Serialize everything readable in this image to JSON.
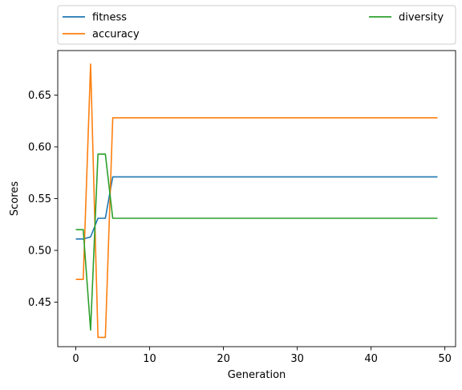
{
  "chart_data": {
    "type": "line",
    "title": "",
    "xlabel": "Generation",
    "ylabel": "Scores",
    "xlim": [
      -2.45,
      51.45
    ],
    "ylim": [
      0.407,
      0.693
    ],
    "xticks": [
      0,
      10,
      20,
      30,
      40,
      50
    ],
    "yticks": [
      0.45,
      0.5,
      0.55,
      0.6,
      0.65
    ],
    "ytick_labels": [
      "0.45",
      "0.50",
      "0.55",
      "0.60",
      "0.65"
    ],
    "grid": false,
    "legend": {
      "placement": "top (above plot, two columns)",
      "columns": 2
    },
    "x": [
      0,
      1,
      2,
      3,
      4,
      5,
      6,
      7,
      8,
      9,
      10,
      11,
      12,
      13,
      14,
      15,
      16,
      17,
      18,
      19,
      20,
      21,
      22,
      23,
      24,
      25,
      26,
      27,
      28,
      29,
      30,
      31,
      32,
      33,
      34,
      35,
      36,
      37,
      38,
      39,
      40,
      41,
      42,
      43,
      44,
      45,
      46,
      47,
      48,
      49
    ],
    "series": [
      {
        "name": "fitness",
        "color": "#1f77b4",
        "values": [
          0.511,
          0.511,
          0.513,
          0.531,
          0.531,
          0.571,
          0.571,
          0.571,
          0.571,
          0.571,
          0.571,
          0.571,
          0.571,
          0.571,
          0.571,
          0.571,
          0.571,
          0.571,
          0.571,
          0.571,
          0.571,
          0.571,
          0.571,
          0.571,
          0.571,
          0.571,
          0.571,
          0.571,
          0.571,
          0.571,
          0.571,
          0.571,
          0.571,
          0.571,
          0.571,
          0.571,
          0.571,
          0.571,
          0.571,
          0.571,
          0.571,
          0.571,
          0.571,
          0.571,
          0.571,
          0.571,
          0.571,
          0.571,
          0.571,
          0.571
        ]
      },
      {
        "name": "accuracy",
        "color": "#ff7f0e",
        "values": [
          0.472,
          0.472,
          0.68,
          0.416,
          0.416,
          0.628,
          0.628,
          0.628,
          0.628,
          0.628,
          0.628,
          0.628,
          0.628,
          0.628,
          0.628,
          0.628,
          0.628,
          0.628,
          0.628,
          0.628,
          0.628,
          0.628,
          0.628,
          0.628,
          0.628,
          0.628,
          0.628,
          0.628,
          0.628,
          0.628,
          0.628,
          0.628,
          0.628,
          0.628,
          0.628,
          0.628,
          0.628,
          0.628,
          0.628,
          0.628,
          0.628,
          0.628,
          0.628,
          0.628,
          0.628,
          0.628,
          0.628,
          0.628,
          0.628,
          0.628
        ]
      },
      {
        "name": "diversity",
        "color": "#2ca02c",
        "values": [
          0.52,
          0.52,
          0.423,
          0.593,
          0.593,
          0.531,
          0.531,
          0.531,
          0.531,
          0.531,
          0.531,
          0.531,
          0.531,
          0.531,
          0.531,
          0.531,
          0.531,
          0.531,
          0.531,
          0.531,
          0.531,
          0.531,
          0.531,
          0.531,
          0.531,
          0.531,
          0.531,
          0.531,
          0.531,
          0.531,
          0.531,
          0.531,
          0.531,
          0.531,
          0.531,
          0.531,
          0.531,
          0.531,
          0.531,
          0.531,
          0.531,
          0.531,
          0.531,
          0.531,
          0.531,
          0.531,
          0.531,
          0.531,
          0.531,
          0.531
        ]
      }
    ]
  }
}
